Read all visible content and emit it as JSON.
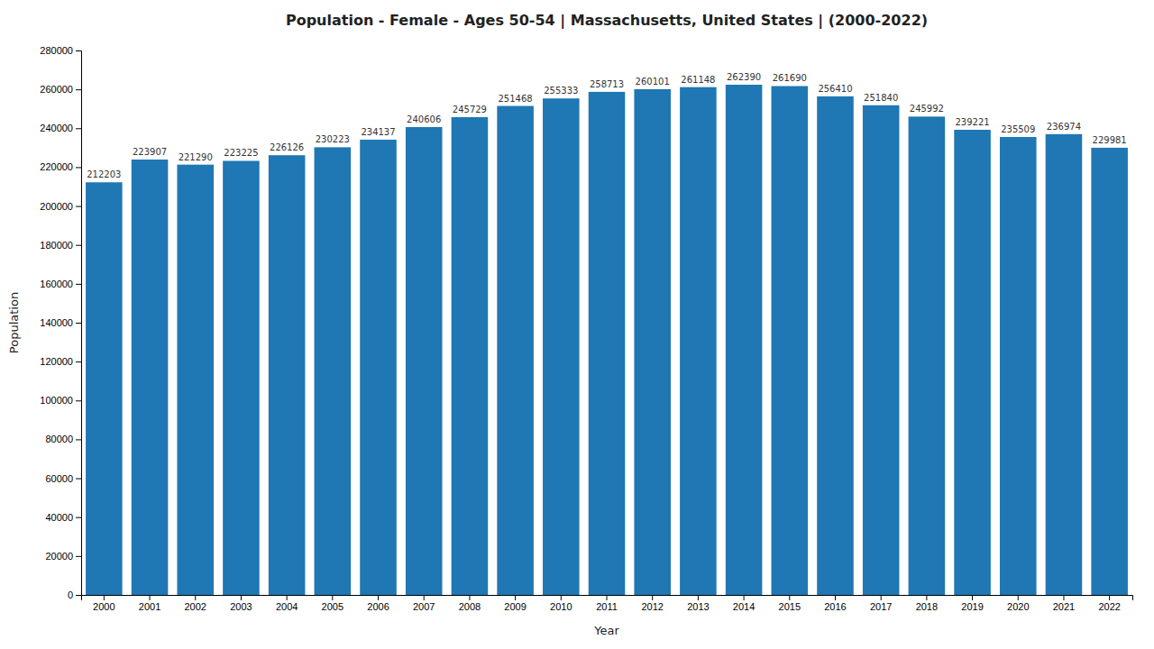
{
  "chart_data": {
    "type": "bar",
    "title": "Population - Female - Ages 50-54 | Massachusetts, United States |  (2000-2022)",
    "xlabel": "Year",
    "ylabel": "Population",
    "categories": [
      "2000",
      "2001",
      "2002",
      "2003",
      "2004",
      "2005",
      "2006",
      "2007",
      "2008",
      "2009",
      "2010",
      "2011",
      "2012",
      "2013",
      "2014",
      "2015",
      "2016",
      "2017",
      "2018",
      "2019",
      "2020",
      "2021",
      "2022"
    ],
    "values": [
      212203,
      223907,
      221290,
      223225,
      226126,
      230223,
      234137,
      240606,
      245729,
      251468,
      255333,
      258713,
      260101,
      261148,
      262390,
      261690,
      256410,
      251840,
      245992,
      239221,
      235509,
      236974,
      229981
    ],
    "ylim": [
      0,
      280000
    ],
    "yticks": [
      0,
      20000,
      40000,
      60000,
      80000,
      100000,
      120000,
      140000,
      160000,
      180000,
      200000,
      220000,
      240000,
      260000,
      280000
    ],
    "grid": false,
    "data_labels": true
  }
}
